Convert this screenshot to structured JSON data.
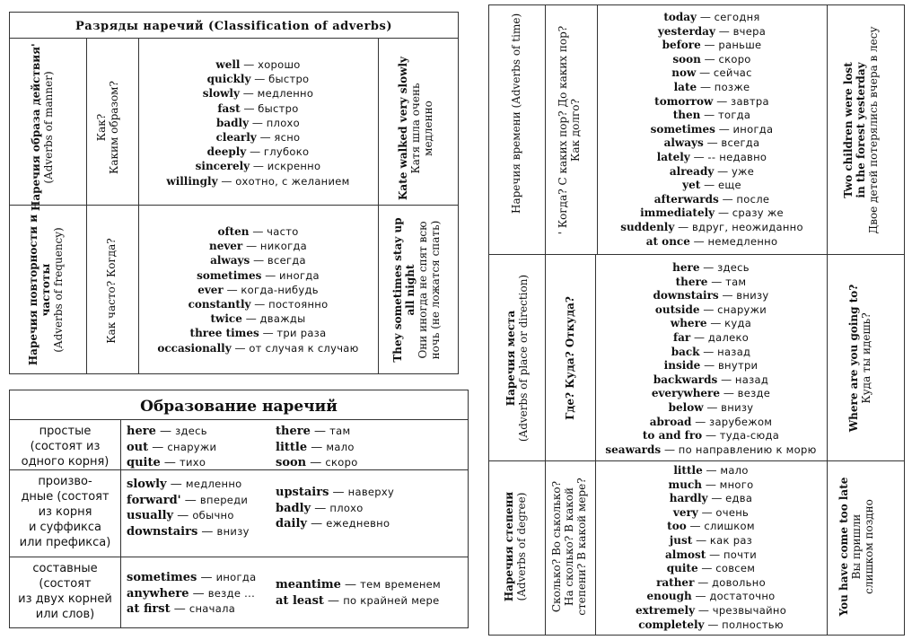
{
  "classification": {
    "title": "Разряды наречий (Classification of adverbs)",
    "manner": {
      "ru": "Наречия образа действия'",
      "en": "(Adverbs of manner)",
      "q1": "Как?",
      "q2": "Каким образом?",
      "words": [
        {
          "en": "well",
          "ru": "хорошо"
        },
        {
          "en": "quickly",
          "ru": "быстро"
        },
        {
          "en": "slowly",
          "ru": "медленно"
        },
        {
          "en": "fast",
          "ru": "быстро"
        },
        {
          "en": "badly",
          "ru": "плохо"
        },
        {
          "en": "clearly",
          "ru": "ясно"
        },
        {
          "en": "deeply",
          "ru": "глубоко"
        },
        {
          "en": "sincerely",
          "ru": "искренно"
        },
        {
          "en": "willingly",
          "ru": "охотно, с желанием"
        }
      ],
      "ex_en": "Kate walked very slowly",
      "ex_ru1": "Катя шла очень",
      "ex_ru2": "медленно"
    },
    "frequency": {
      "ru1": "Наречия повторности и",
      "ru2": "частоты",
      "en": "(Adverbs of frequency)",
      "q1": "Как часто? Когда?",
      "words": [
        {
          "en": "often",
          "ru": "часто"
        },
        {
          "en": "never",
          "ru": "никогда"
        },
        {
          "en": "always",
          "ru": "всегда"
        },
        {
          "en": "sometimes",
          "ru": "иногда"
        },
        {
          "en": "ever",
          "ru": "когда-нибудь"
        },
        {
          "en": "constantly",
          "ru": "постоянно"
        },
        {
          "en": "twice",
          "ru": "дважды"
        },
        {
          "en": "three times",
          "ru": "три раза"
        },
        {
          "en": "occasionally",
          "ru": "от случая к случаю"
        }
      ],
      "ex_en1": "They sometimes stay up",
      "ex_en2": "all night",
      "ex_ru1": "Они иногда не спят всю",
      "ex_ru2": "ночь (не ложатся спать)"
    },
    "time": {
      "ru": "Наречия времени",
      "en": "(Adverbs of time)",
      "q1": "' Когда? С каких пор? До каких пор?",
      "q2": "Как долго?",
      "words": [
        {
          "en": "today",
          "ru": "сегодня"
        },
        {
          "en": "yesterday",
          "ru": "вчера"
        },
        {
          "en": "before",
          "ru": "раньше"
        },
        {
          "en": "soon",
          "ru": "скоро"
        },
        {
          "en": "now",
          "ru": "сейчас"
        },
        {
          "en": "late",
          "ru": "позже"
        },
        {
          "en": "tomorrow",
          "ru": "завтра"
        },
        {
          "en": "then",
          "ru": "тогда"
        },
        {
          "en": "sometimes",
          "ru": "иногда"
        },
        {
          "en": "always",
          "ru": "всегда"
        },
        {
          "en": "lately",
          "ru": "-- недавно"
        },
        {
          "en": "already",
          "ru": "уже"
        },
        {
          "en": "yet",
          "ru": "еще"
        },
        {
          "en": "afterwards",
          "ru": "после"
        },
        {
          "en": "immediately",
          "ru": "сразу же"
        },
        {
          "en": "suddenly",
          "ru": "вдруг, неожиданно"
        },
        {
          "en": "at once",
          "ru": "немедленно"
        }
      ],
      "ex_en1": "Two children were lost",
      "ex_en2": "in the forest yesterday",
      "ex_ru": "Двое детей потерялись вчера в лесу"
    },
    "place": {
      "ru": "Наречия места",
      "en": "(Adverbs of place or direction)",
      "q1": "Где? Куда? Откуда?",
      "words": [
        {
          "en": "here",
          "ru": "здесь"
        },
        {
          "en": "there",
          "ru": "там"
        },
        {
          "en": "downstairs",
          "ru": "внизу"
        },
        {
          "en": "outside",
          "ru": "снаружи"
        },
        {
          "en": "where",
          "ru": "куда"
        },
        {
          "en": "far",
          "ru": "далеко"
        },
        {
          "en": "back",
          "ru": "назад"
        },
        {
          "en": "inside",
          "ru": "внутри"
        },
        {
          "en": "backwards",
          "ru": "назад"
        },
        {
          "en": "everywhere",
          "ru": "везде"
        },
        {
          "en": "below",
          "ru": "внизу"
        },
        {
          "en": "abroad",
          "ru": "зарубежом"
        },
        {
          "en": "to and fro",
          "ru": "туда-сюда"
        },
        {
          "en": "seawards",
          "ru": "по направлению к морю"
        }
      ],
      "ex_en": "Where are you going to?",
      "ex_ru": "Куда ты идешь?"
    },
    "degree": {
      "ru": "Наречия степени",
      "en": "(Adverbs of degree)",
      "q1": "Сколько? Во ськолько?",
      "q2": "На сколько? В какой",
      "q3": "степени? В какой мере?",
      "words": [
        {
          "en": "little",
          "ru": "мало"
        },
        {
          "en": "much",
          "ru": "много"
        },
        {
          "en": "hardly",
          "ru": "едва"
        },
        {
          "en": "very",
          "ru": "очень"
        },
        {
          "en": "too",
          "ru": "слишком"
        },
        {
          "en": "just",
          "ru": "как раз"
        },
        {
          "en": "almost",
          "ru": "почти"
        },
        {
          "en": "quite",
          "ru": "совсем"
        },
        {
          "en": "rather",
          "ru": "довольно"
        },
        {
          "en": "enough",
          "ru": "достаточно"
        },
        {
          "en": "extremely",
          "ru": "чрезвычайно"
        },
        {
          "en": "completely",
          "ru": "полностью"
        }
      ],
      "ex_en": "You have come too late",
      "ex_ru1": "Вы пришли",
      "ex_ru2": "слишком поздно"
    }
  },
  "formation": {
    "title": "Образование наречий",
    "rows": [
      {
        "type": [
          "простые",
          "(состоят из",
          "одного корня)"
        ],
        "col1": [
          {
            "en": "here",
            "ru": "здесь"
          },
          {
            "en": "out",
            "ru": "снаружи"
          },
          {
            "en": "quite",
            "ru": "тихо"
          }
        ],
        "col2": [
          {
            "en": "there",
            "ru": "там"
          },
          {
            "en": "little",
            "ru": "мало"
          },
          {
            "en": "soon",
            "ru": "скоро"
          }
        ]
      },
      {
        "type": [
          "произво-",
          "дные (состоят",
          "из корня",
          "и суффикса",
          "или префикса)"
        ],
        "col1": [
          {
            "en": "slowly",
            "ru": "медленно"
          },
          {
            "en": "forward'",
            "ru": "впереди"
          },
          {
            "en": "usually",
            "ru": "обычно"
          },
          {
            "en": "downstairs",
            "ru": "внизу"
          }
        ],
        "col2": [
          {
            "en": "upstairs",
            "ru": "наверху"
          },
          {
            "en": "badly",
            "ru": "плохо"
          },
          {
            "en": "daily",
            "ru": "ежедневно"
          }
        ]
      },
      {
        "type": [
          "составные",
          "(состоят",
          "из двух корней",
          "или слов)"
        ],
        "col1": [
          {
            "en": "sometimes",
            "ru": "иногда"
          },
          {
            "en": "anywhere",
            "ru": "везде ..."
          },
          {
            "en": "at first",
            "ru": "сначала"
          }
        ],
        "col2": [
          {
            "en": "meantime",
            "ru": "тем временем"
          },
          {
            "en": "at least",
            "ru": "по крайней мере"
          }
        ]
      }
    ]
  }
}
